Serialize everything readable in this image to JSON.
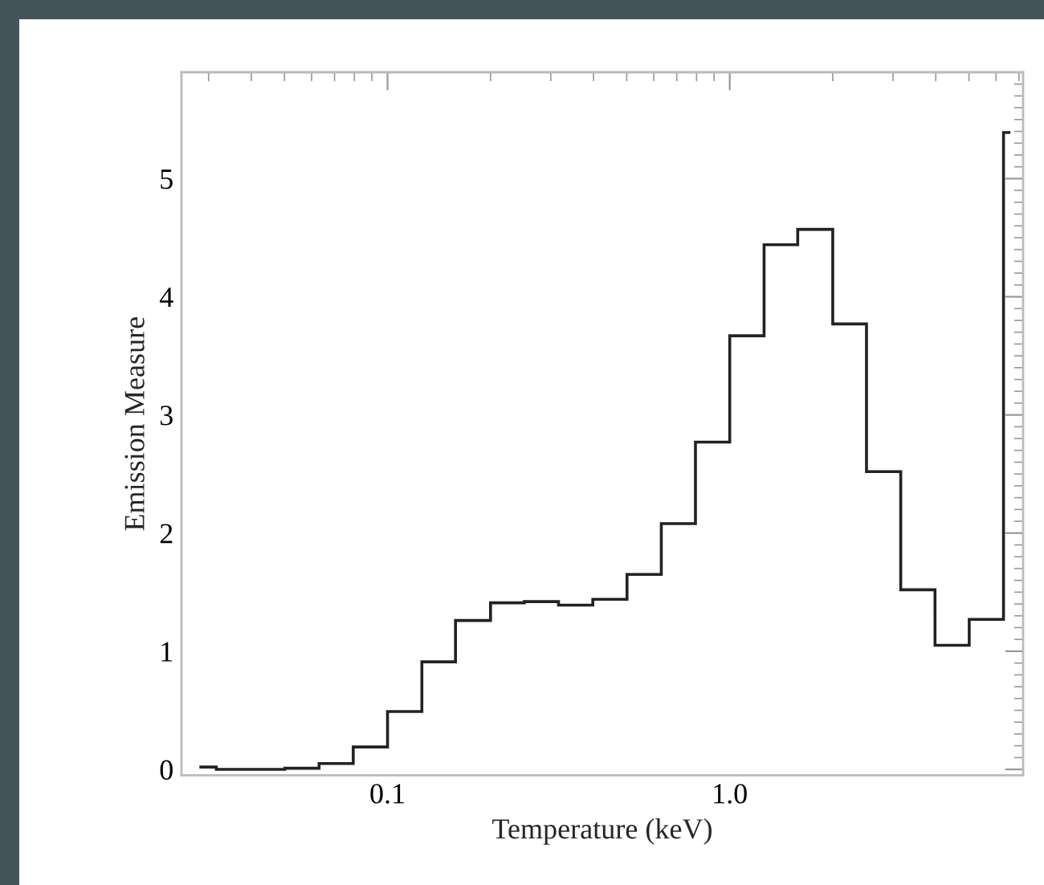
{
  "chart_data": {
    "type": "histogram",
    "xlabel": "Temperature (keV)",
    "ylabel": "Emission Measure",
    "bins": [
      0.0282,
      0.0316,
      0.0398,
      0.0501,
      0.0631,
      0.0794,
      0.1,
      0.126,
      0.158,
      0.2,
      0.251,
      0.316,
      0.398,
      0.501,
      0.631,
      0.794,
      1.0,
      1.26,
      1.58,
      2.0,
      2.51,
      3.16,
      3.98,
      5.01,
      6.31,
      6.61
    ],
    "values": [
      0.02,
      0.0,
      0.0,
      0.01,
      0.05,
      0.19,
      0.49,
      0.91,
      1.26,
      1.41,
      1.42,
      1.39,
      1.44,
      1.65,
      2.08,
      2.77,
      3.67,
      4.44,
      4.57,
      3.77,
      2.52,
      1.52,
      1.05,
      1.27,
      5.39
    ],
    "color": "#222222",
    "log": "x",
    "xlim": [
      0.025,
      7.2
    ],
    "xticks": [
      0.1,
      {
        "value": 1,
        "label": "1.0"
      }
    ],
    "ylim": [
      -0.05,
      5.9
    ],
    "yticks": [
      0,
      1,
      2,
      3,
      4,
      5
    ],
    "grid": false
  }
}
